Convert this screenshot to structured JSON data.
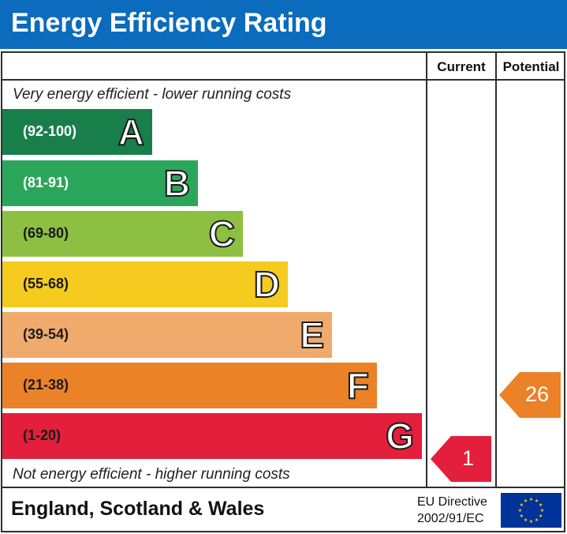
{
  "title": "Energy Efficiency Rating",
  "columns": {
    "current": "Current",
    "potential": "Potential"
  },
  "top_note": "Very energy efficient - lower running costs",
  "bottom_note": "Not energy efficient - higher running costs",
  "bands": [
    {
      "range": "(92-100)",
      "letter": "A",
      "color": "#197f4a",
      "text_color": "#ffffff"
    },
    {
      "range": "(81-91)",
      "letter": "B",
      "color": "#2aa65a",
      "text_color": "#ffffff"
    },
    {
      "range": "(69-80)",
      "letter": "C",
      "color": "#8dc042",
      "text_color": "#1a1a1a"
    },
    {
      "range": "(55-68)",
      "letter": "D",
      "color": "#f4cb1e",
      "text_color": "#1a1a1a"
    },
    {
      "range": "(39-54)",
      "letter": "E",
      "color": "#f0aa6c",
      "text_color": "#1a1a1a"
    },
    {
      "range": "(21-38)",
      "letter": "F",
      "color": "#ec8228",
      "text_color": "#1a1a1a"
    },
    {
      "range": "(1-20)",
      "letter": "G",
      "color": "#e31f3b",
      "text_color": "#1a1a1a"
    }
  ],
  "ratings": {
    "current": {
      "value": "1",
      "band": "G",
      "color": "#e31f3b"
    },
    "potential": {
      "value": "26",
      "band": "F",
      "color": "#ec8228"
    }
  },
  "footer": {
    "country": "England, Scotland & Wales",
    "directive_line1": "EU Directive",
    "directive_line2": "2002/91/EC"
  },
  "icons": {
    "eu_flag": "eu-flag-icon"
  }
}
